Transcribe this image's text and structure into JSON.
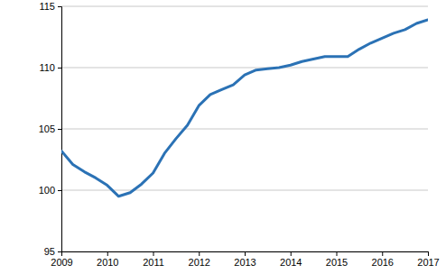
{
  "chart_data": {
    "type": "line",
    "x": [
      2009,
      2009.25,
      2009.5,
      2009.75,
      2010,
      2010.25,
      2010.5,
      2010.75,
      2011,
      2011.25,
      2011.5,
      2011.75,
      2012,
      2012.25,
      2012.5,
      2012.75,
      2013,
      2013.25,
      2013.5,
      2013.75,
      2014,
      2014.25,
      2014.5,
      2014.75,
      2015,
      2015.25,
      2015.5,
      2015.75,
      2016,
      2016.25,
      2016.5,
      2016.75,
      2017
    ],
    "values": [
      103.2,
      102.1,
      101.5,
      101.0,
      100.4,
      99.5,
      99.8,
      100.5,
      101.4,
      103.0,
      104.2,
      105.3,
      106.9,
      107.8,
      108.2,
      108.6,
      109.4,
      109.8,
      109.9,
      110.0,
      110.2,
      110.5,
      110.7,
      110.9,
      110.9,
      110.9,
      111.5,
      112.0,
      112.4,
      112.8,
      113.1,
      113.6,
      113.9
    ],
    "color": "#2b72b5",
    "xlim": [
      2009,
      2017
    ],
    "xticks": [
      2009,
      2010,
      2011,
      2012,
      2013,
      2014,
      2015,
      2016,
      2017
    ],
    "ylim": [
      95,
      115
    ],
    "yticks": [
      95,
      100,
      105,
      110,
      115
    ],
    "grid": true
  }
}
